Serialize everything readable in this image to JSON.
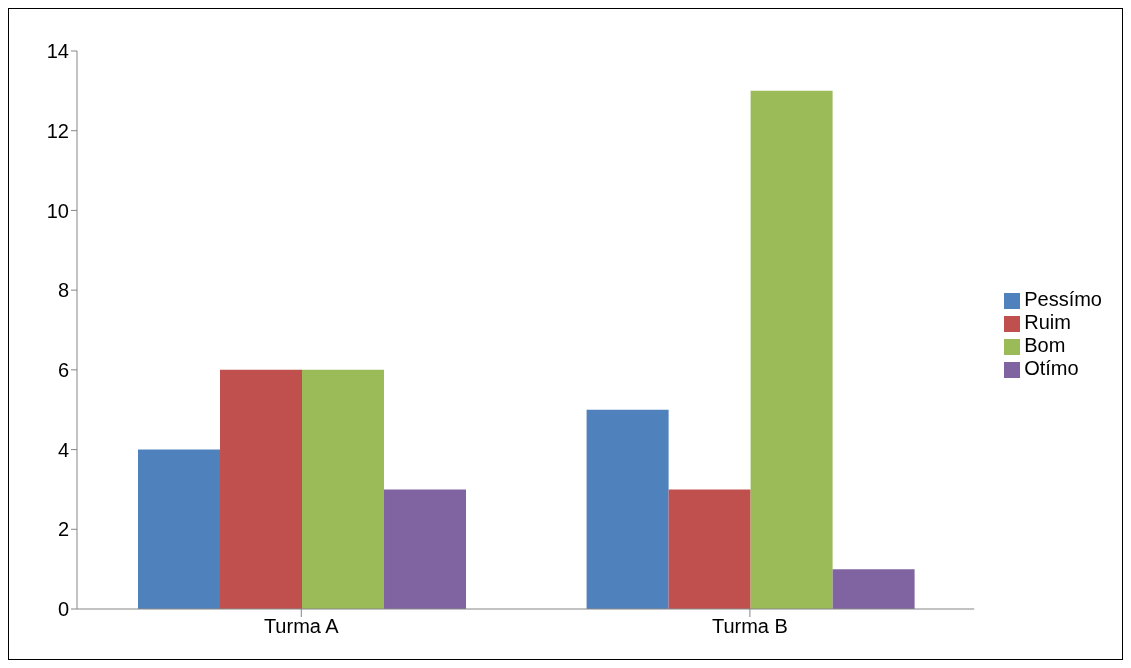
{
  "chart_data": {
    "type": "bar",
    "categories": [
      "Turma A",
      "Turma B"
    ],
    "series": [
      {
        "name": "Pessímo",
        "color": "#4f81bd",
        "values": [
          4,
          5
        ]
      },
      {
        "name": "Ruim",
        "color": "#c0504d",
        "values": [
          6,
          3
        ]
      },
      {
        "name": "Bom",
        "color": "#9bbb59",
        "values": [
          6,
          13
        ]
      },
      {
        "name": "Otímo",
        "color": "#8064a2",
        "values": [
          3,
          1
        ]
      }
    ],
    "ylim": [
      0,
      14
    ],
    "yticks": [
      0,
      2,
      4,
      6,
      8,
      10,
      12,
      14
    ],
    "grid": false,
    "legend": "right"
  }
}
